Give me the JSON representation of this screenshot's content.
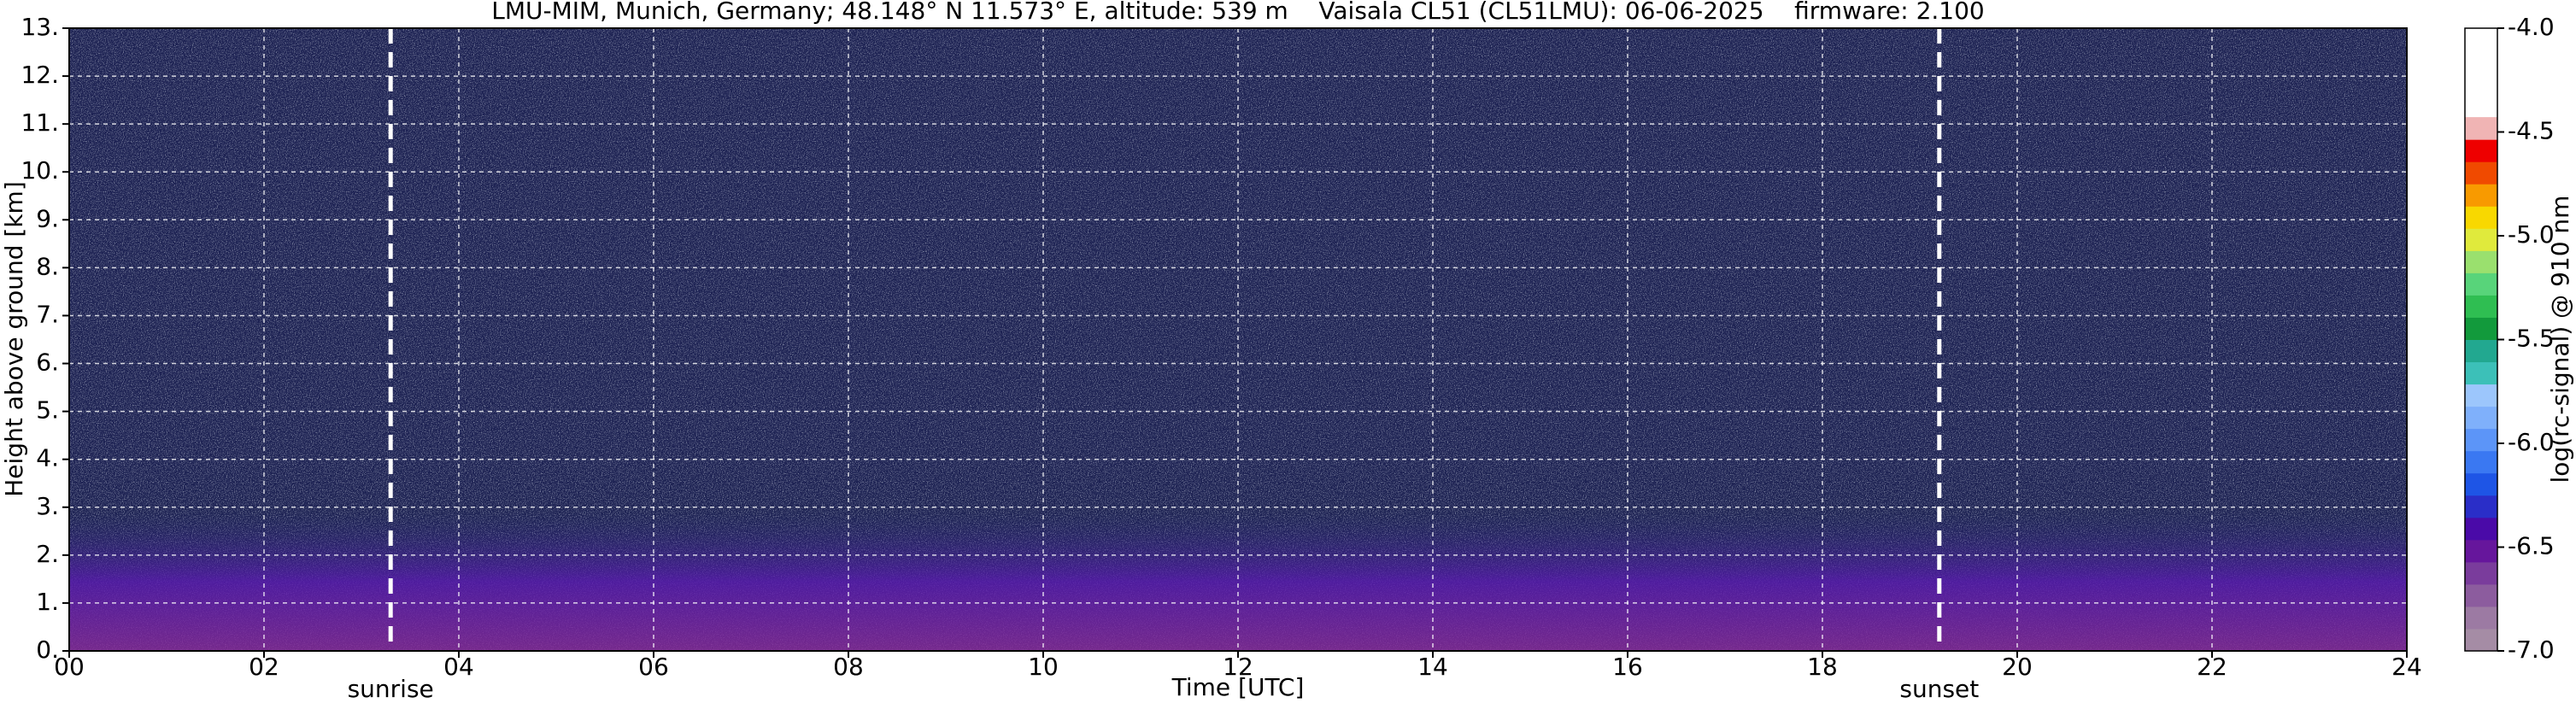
{
  "chart_data": {
    "type": "heatmap",
    "title": "LMU-MIM, Munich, Germany; 48.148° N 11.573° E, altitude: 539 m    Vaisala CL51 (CL51LMU): 06-06-2025    firmware: 2.100",
    "xlabel": "Time [UTC]",
    "ylabel": "Height above ground [km]",
    "xlim": [
      0,
      24
    ],
    "xticks": [
      {
        "value": 0,
        "label": "00"
      },
      {
        "value": 2,
        "label": "02"
      },
      {
        "value": 4,
        "label": "04"
      },
      {
        "value": 6,
        "label": "06"
      },
      {
        "value": 8,
        "label": "08"
      },
      10,
      12,
      14,
      16,
      18,
      20,
      22,
      24
    ],
    "ylim": [
      0,
      13
    ],
    "yticks": [
      {
        "value": 0,
        "label": "0."
      },
      {
        "value": 1,
        "label": "1."
      },
      {
        "value": 2,
        "label": "2."
      },
      {
        "value": 3,
        "label": "3."
      },
      {
        "value": 4,
        "label": "4."
      },
      {
        "value": 5,
        "label": "5."
      },
      {
        "value": 6,
        "label": "6."
      },
      {
        "value": 7,
        "label": "7."
      },
      {
        "value": 8,
        "label": "8."
      },
      {
        "value": 9,
        "label": "9."
      },
      {
        "value": 10,
        "label": "10."
      },
      {
        "value": 11,
        "label": "11."
      },
      {
        "value": 12,
        "label": "12."
      },
      {
        "value": 13,
        "label": "13."
      }
    ],
    "grid": true,
    "annotations": [
      {
        "x": 3.3,
        "text": "sunrise"
      },
      {
        "x": 19.2,
        "text": "sunset"
      }
    ],
    "colorbar": {
      "label": "log(rc-signal) @ 910 nm",
      "lim": [
        -7,
        -4
      ],
      "ticks": [
        {
          "value": -4,
          "label": "-4.0"
        },
        -4.5,
        {
          "value": -5,
          "label": "-5.0"
        },
        -5.5,
        {
          "value": -6,
          "label": "-6.0"
        },
        -6.5,
        {
          "value": -7,
          "label": "-7.0"
        }
      ],
      "colors": [
        "#a58ca5",
        "#9c7aa3",
        "#8c5c9e",
        "#7a3c9c",
        "#66169c",
        "#4a0aa8",
        "#2a2ec8",
        "#1e55e6",
        "#3a78f2",
        "#5c95f8",
        "#7fb0fb",
        "#9cc6fc",
        "#3cc0b8",
        "#22a890",
        "#129a3c",
        "#2fbe52",
        "#58d47a",
        "#9ae06e",
        "#e0ea3c",
        "#f8d800",
        "#f89a00",
        "#f04a00",
        "#ee0000",
        "#f0b4b4"
      ]
    }
  }
}
